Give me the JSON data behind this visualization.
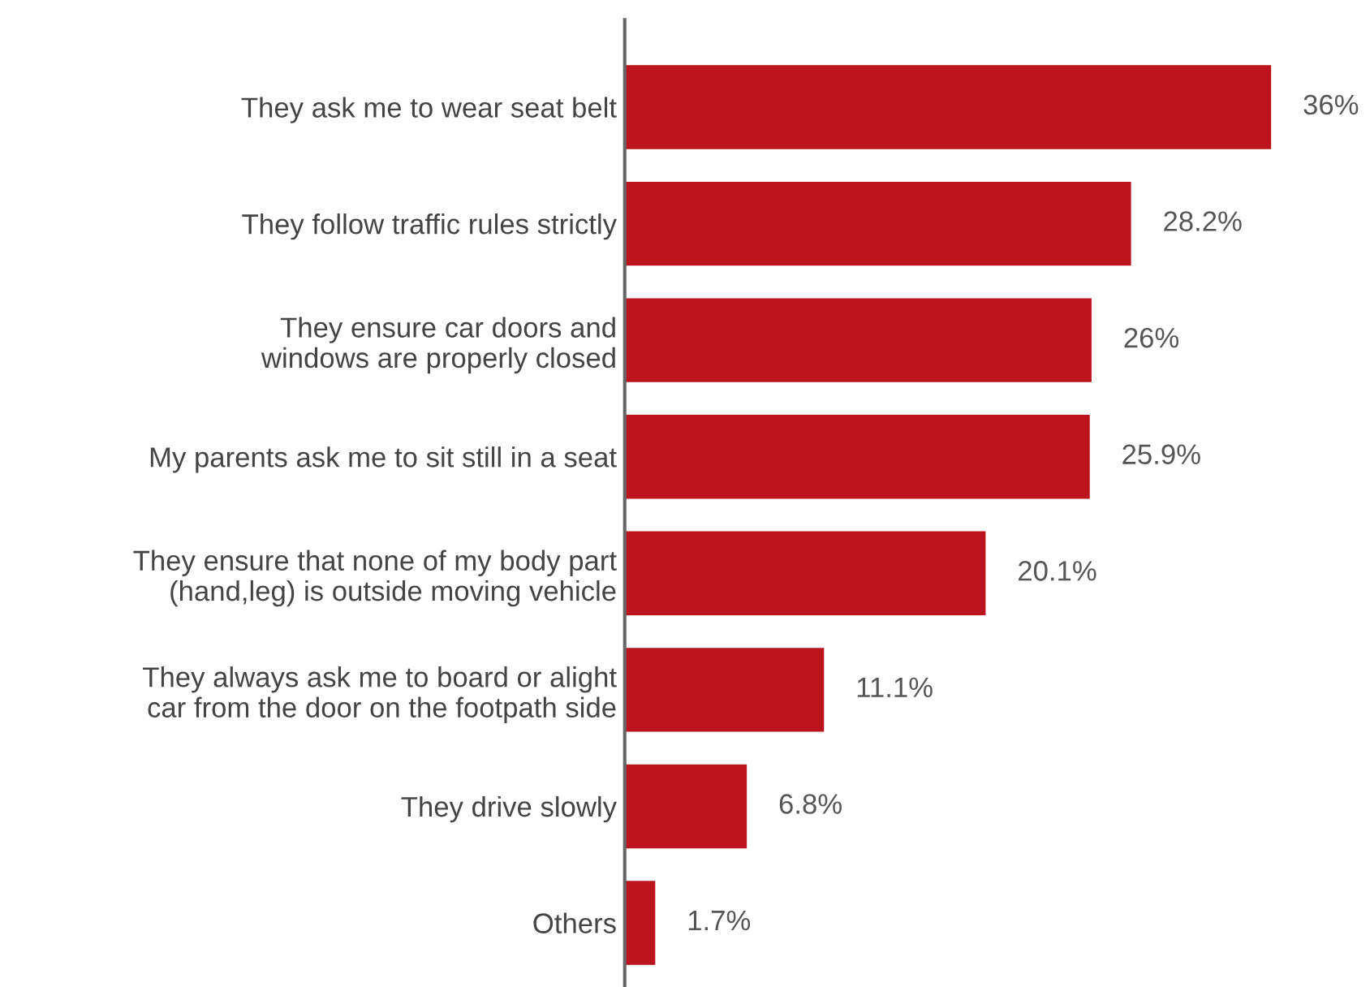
{
  "chart_data": {
    "type": "bar",
    "orientation": "horizontal",
    "categories": [
      "They ask me to wear seat belt",
      "They follow traffic rules strictly",
      "They ensure car doors and\nwindows are properly closed",
      "My parents ask me to sit still in a seat",
      "They ensure that none of my body part\n(hand,leg) is outside moving vehicle",
      "They always ask me to board or alight\ncar from the door on the footpath side",
      "They drive slowly",
      "Others"
    ],
    "values": [
      36,
      28.2,
      26,
      25.9,
      20.1,
      11.1,
      6.8,
      1.7
    ],
    "value_labels": [
      "36%",
      "28.2%",
      "26%",
      "25.9%",
      "20.1%",
      "11.1%",
      "6.8%",
      "1.7%"
    ],
    "color": "#bb141e",
    "grid": false,
    "legend": false,
    "tick_labels": "y"
  }
}
